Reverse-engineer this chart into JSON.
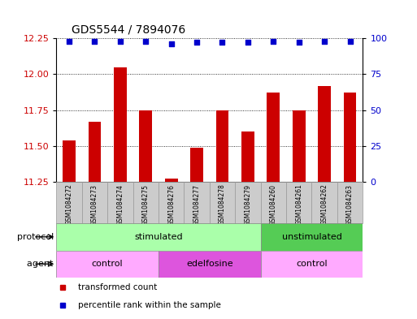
{
  "title": "GDS5544 / 7894076",
  "samples": [
    "GSM1084272",
    "GSM1084273",
    "GSM1084274",
    "GSM1084275",
    "GSM1084276",
    "GSM1084277",
    "GSM1084278",
    "GSM1084279",
    "GSM1084260",
    "GSM1084261",
    "GSM1084262",
    "GSM1084263"
  ],
  "bar_values": [
    11.54,
    11.67,
    12.05,
    11.75,
    11.27,
    11.49,
    11.75,
    11.6,
    11.87,
    11.75,
    11.92,
    11.87
  ],
  "percentile_values": [
    98,
    98,
    98,
    98,
    96,
    97,
    97,
    97,
    98,
    97,
    98,
    98
  ],
  "ylim_left": [
    11.25,
    12.25
  ],
  "ylim_right": [
    0,
    100
  ],
  "yticks_left": [
    11.25,
    11.5,
    11.75,
    12.0,
    12.25
  ],
  "yticks_right": [
    0,
    25,
    50,
    75,
    100
  ],
  "bar_color": "#cc0000",
  "dot_color": "#0000cc",
  "bar_bottom": 11.25,
  "protocol_groups": [
    {
      "label": "stimulated",
      "start": 0,
      "end": 8,
      "color": "#aaffaa"
    },
    {
      "label": "unstimulated",
      "start": 8,
      "end": 12,
      "color": "#55cc55"
    }
  ],
  "agent_groups": [
    {
      "label": "control",
      "start": 0,
      "end": 4,
      "color": "#ffaaff"
    },
    {
      "label": "edelfosine",
      "start": 4,
      "end": 8,
      "color": "#dd55dd"
    },
    {
      "label": "control",
      "start": 8,
      "end": 12,
      "color": "#ffaaff"
    }
  ],
  "legend_items": [
    {
      "label": "transformed count",
      "color": "#cc0000"
    },
    {
      "label": "percentile rank within the sample",
      "color": "#0000cc"
    }
  ],
  "xlabel_protocol": "protocol",
  "xlabel_agent": "agent",
  "bg_color": "#ffffff",
  "grid_color": "#000000",
  "tick_label_color_left": "#cc0000",
  "tick_label_color_right": "#0000cc",
  "sample_box_color": "#cccccc",
  "sample_box_edge": "#999999"
}
